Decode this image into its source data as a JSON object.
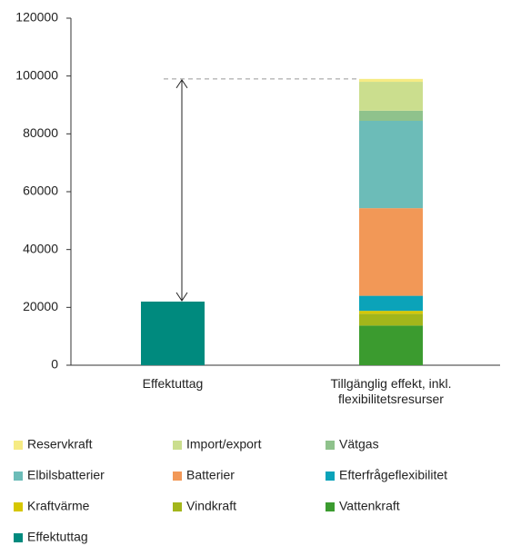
{
  "chart_data": {
    "type": "stacked_bar",
    "categories": [
      "Effektuttag",
      "Tillgänglig effekt, inkl. flexibilitetsresurser"
    ],
    "series": [
      {
        "name": "Reservkraft",
        "color": "#f6eb84",
        "values": [
          null,
          1000
        ]
      },
      {
        "name": "Import/export",
        "color": "#cbde8e",
        "values": [
          null,
          10000
        ]
      },
      {
        "name": "Vätgas",
        "color": "#8fc28c",
        "values": [
          null,
          3500
        ]
      },
      {
        "name": "Elbilsbatterier",
        "color": "#6cbcb8",
        "values": [
          null,
          30200
        ]
      },
      {
        "name": "Batterier",
        "color": "#f29857",
        "values": [
          null,
          30300
        ]
      },
      {
        "name": "Efterfrågeflexibilitet",
        "color": "#0ba3b9",
        "values": [
          null,
          5200
        ]
      },
      {
        "name": "Kraftvärme",
        "color": "#d6c700",
        "values": [
          null,
          1000
        ]
      },
      {
        "name": "Vindkraft",
        "color": "#a3b61b",
        "values": [
          null,
          4100
        ]
      },
      {
        "name": "Vattenkraft",
        "color": "#3b9b2f",
        "values": [
          null,
          13700
        ]
      },
      {
        "name": "Effektuttag",
        "color": "#008a7e",
        "values": [
          22000,
          null
        ]
      }
    ],
    "ylim": [
      0,
      120000
    ],
    "yticks": [
      0,
      20000,
      40000,
      60000,
      80000,
      100000,
      120000
    ]
  }
}
